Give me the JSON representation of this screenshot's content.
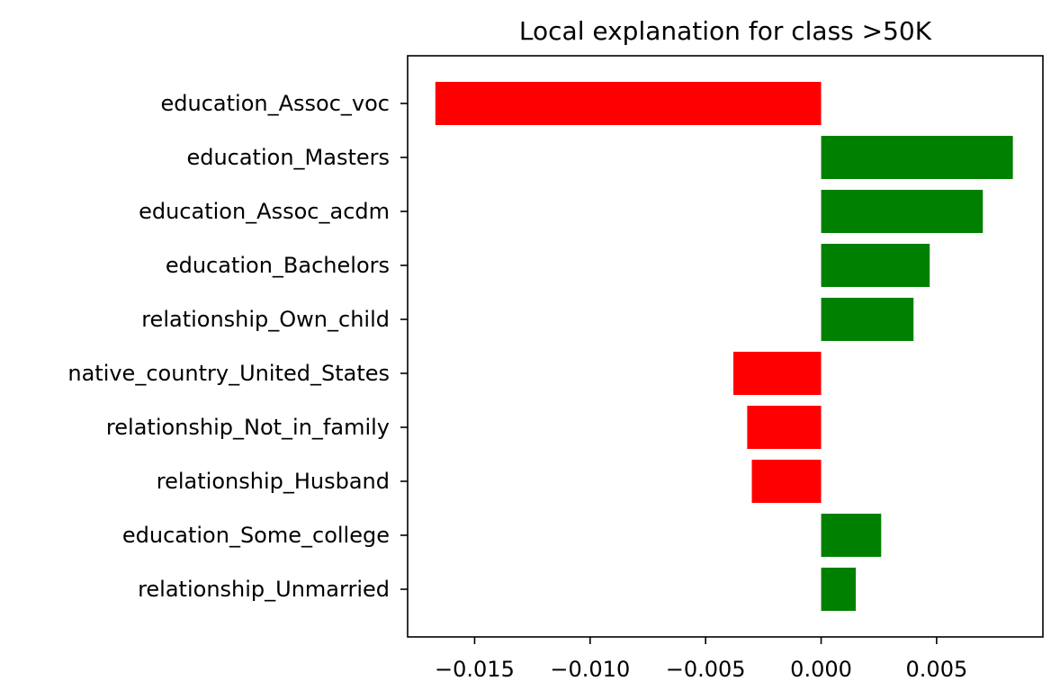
{
  "chart_data": {
    "type": "bar",
    "orientation": "horizontal",
    "title": "Local explanation for class >50K",
    "xlabel": "",
    "ylabel": "",
    "xlim": [
      -0.0179,
      0.0096
    ],
    "xticks": [
      -0.015,
      -0.01,
      -0.005,
      0.0,
      0.005
    ],
    "xtick_labels": [
      "−0.015",
      "−0.010",
      "−0.005",
      "0.000",
      "0.005"
    ],
    "grid": false,
    "legend": "none",
    "colors": {
      "positive": "#008000",
      "negative": "#ff0000"
    },
    "categories": [
      "education_Assoc_voc",
      "education_Masters",
      "education_Assoc_acdm",
      "education_Bachelors",
      "relationship_Own_child",
      "native_country_United_States",
      "relationship_Not_in_family",
      "relationship_Husband",
      "education_Some_college",
      "relationship_Unmarried"
    ],
    "values": [
      -0.0167,
      0.0083,
      0.007,
      0.0047,
      0.004,
      -0.0038,
      -0.0032,
      -0.003,
      0.0026,
      0.0015
    ]
  }
}
